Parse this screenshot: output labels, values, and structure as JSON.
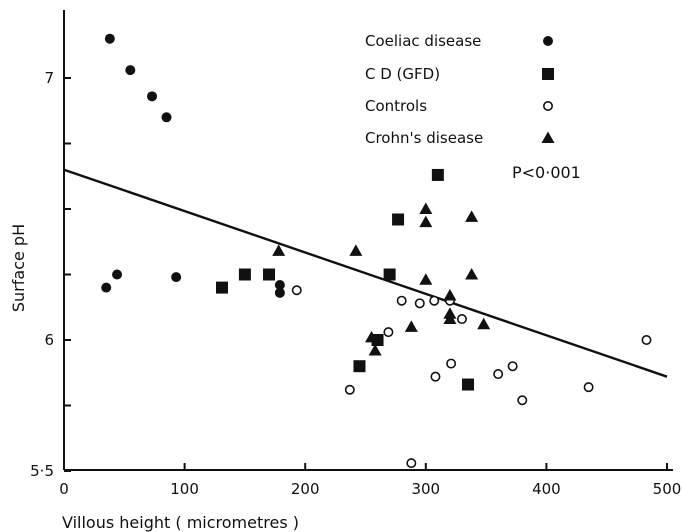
{
  "chart_data": {
    "type": "scatter",
    "title": "",
    "xlabel": "Villous height  ( micrometres )",
    "ylabel": "Surface pH",
    "xlim": [
      0,
      500
    ],
    "ylim": [
      5.5,
      7.25
    ],
    "x_ticks": [
      0,
      100,
      200,
      300,
      400,
      500
    ],
    "x_tick_labels": [
      "0",
      "100",
      "200",
      "300",
      "400",
      "500"
    ],
    "y_ticks": [
      5.5,
      5.75,
      6.0,
      6.25,
      6.5,
      6.75,
      7.0
    ],
    "y_tick_labels": [
      "5·5",
      "",
      "6",
      "",
      "",
      "",
      "7"
    ],
    "grid": false,
    "legend_position": "top-right",
    "annotation": "P<0·001",
    "regression_line": {
      "x": [
        0,
        500
      ],
      "y": [
        6.65,
        5.86
      ]
    },
    "series": [
      {
        "name": "Coeliac disease",
        "marker": "filled-circle",
        "points": [
          [
            38,
            7.15
          ],
          [
            55,
            7.03
          ],
          [
            73,
            6.93
          ],
          [
            85,
            6.85
          ],
          [
            35,
            6.2
          ],
          [
            44,
            6.25
          ],
          [
            93,
            6.24
          ],
          [
            179,
            6.21
          ],
          [
            179,
            6.18
          ]
        ]
      },
      {
        "name": "C D  (GFD)",
        "marker": "filled-square",
        "points": [
          [
            310,
            6.63
          ],
          [
            277,
            6.46
          ],
          [
            150,
            6.25
          ],
          [
            170,
            6.25
          ],
          [
            270,
            6.25
          ],
          [
            131,
            6.2
          ],
          [
            260,
            6.0
          ],
          [
            245,
            5.9
          ],
          [
            335,
            5.83
          ]
        ]
      },
      {
        "name": "Controls",
        "marker": "open-circle",
        "points": [
          [
            193,
            6.19
          ],
          [
            280,
            6.15
          ],
          [
            295,
            6.14
          ],
          [
            307,
            6.15
          ],
          [
            320,
            6.15
          ],
          [
            269,
            6.03
          ],
          [
            330,
            6.08
          ],
          [
            308,
            5.86
          ],
          [
            321,
            5.91
          ],
          [
            372,
            5.9
          ],
          [
            360,
            5.87
          ],
          [
            237,
            5.81
          ],
          [
            380,
            5.77
          ],
          [
            435,
            5.82
          ],
          [
            483,
            6.0
          ],
          [
            288,
            5.53
          ]
        ]
      },
      {
        "name": "Crohn's disease",
        "marker": "filled-triangle",
        "points": [
          [
            178,
            6.34
          ],
          [
            242,
            6.34
          ],
          [
            300,
            6.5
          ],
          [
            300,
            6.45
          ],
          [
            338,
            6.47
          ],
          [
            300,
            6.23
          ],
          [
            320,
            6.17
          ],
          [
            338,
            6.25
          ],
          [
            320,
            6.1
          ],
          [
            320,
            6.08
          ],
          [
            348,
            6.06
          ],
          [
            288,
            6.05
          ],
          [
            255,
            6.01
          ],
          [
            258,
            5.96
          ]
        ]
      }
    ]
  }
}
